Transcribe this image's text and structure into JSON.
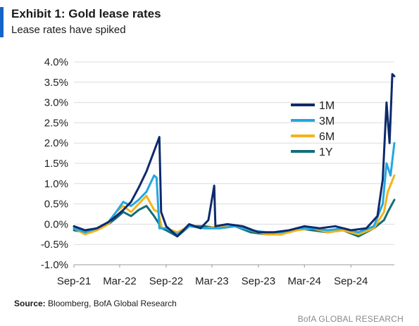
{
  "header": {
    "title": "Exhibit 1: Gold lease rates",
    "subtitle": "Lease rates have spiked"
  },
  "footer": {
    "source_label": "Source:",
    "source_text": "Bloomberg, BofA Global Research",
    "brand": "BofA GLOBAL RESEARCH"
  },
  "colors": {
    "accent": "#1464c8",
    "grid": "#dcdcdc",
    "axis": "#9a9a9a"
  },
  "chart_data": {
    "type": "line",
    "title": "Exhibit 1: Gold lease rates",
    "subtitle": "Lease rates have spiked",
    "xlabel": "",
    "ylabel": "",
    "ylim": [
      -1.0,
      4.0
    ],
    "yticks": [
      "4.0%",
      "3.5%",
      "3.0%",
      "2.5%",
      "2.0%",
      "1.5%",
      "1.0%",
      "0.5%",
      "0.0%",
      "-0.5%",
      "-1.0%"
    ],
    "ytick_values": [
      4.0,
      3.5,
      3.0,
      2.5,
      2.0,
      1.5,
      1.0,
      0.5,
      0.0,
      -0.5,
      -1.0
    ],
    "xlim": [
      "2021-09-01",
      "2025-02-20"
    ],
    "xticks": [
      "Sep-21",
      "Mar-22",
      "Sep-22",
      "Mar-23",
      "Sep-23",
      "Mar-24",
      "Sep-24"
    ],
    "xtick_dates": [
      "2021-09-01",
      "2022-03-01",
      "2022-09-01",
      "2023-03-01",
      "2023-09-01",
      "2024-03-01",
      "2024-09-01"
    ],
    "grid": "horizontal",
    "legend_position": "right-inside",
    "series": [
      {
        "name": "1M",
        "color": "#0e2a6b",
        "points": [
          [
            "2021-09-01",
            -0.05
          ],
          [
            "2021-10-15",
            -0.15
          ],
          [
            "2021-12-01",
            -0.1
          ],
          [
            "2022-01-15",
            0.05
          ],
          [
            "2022-02-15",
            0.2
          ],
          [
            "2022-03-15",
            0.35
          ],
          [
            "2022-04-15",
            0.55
          ],
          [
            "2022-05-15",
            0.9
          ],
          [
            "2022-06-15",
            1.3
          ],
          [
            "2022-07-15",
            1.8
          ],
          [
            "2022-08-05",
            2.15
          ],
          [
            "2022-08-12",
            0.3
          ],
          [
            "2022-09-01",
            -0.05
          ],
          [
            "2022-10-15",
            -0.3
          ],
          [
            "2022-12-01",
            0.0
          ],
          [
            "2023-01-15",
            -0.1
          ],
          [
            "2023-02-15",
            0.1
          ],
          [
            "2023-03-10",
            0.95
          ],
          [
            "2023-03-15",
            -0.05
          ],
          [
            "2023-05-01",
            0.0
          ],
          [
            "2023-07-01",
            -0.05
          ],
          [
            "2023-09-01",
            -0.2
          ],
          [
            "2023-11-01",
            -0.2
          ],
          [
            "2024-01-01",
            -0.15
          ],
          [
            "2024-03-01",
            -0.05
          ],
          [
            "2024-05-01",
            -0.1
          ],
          [
            "2024-07-01",
            -0.05
          ],
          [
            "2024-09-01",
            -0.15
          ],
          [
            "2024-11-01",
            -0.1
          ],
          [
            "2024-12-15",
            0.2
          ],
          [
            "2025-01-05",
            1.1
          ],
          [
            "2025-01-20",
            3.0
          ],
          [
            "2025-02-01",
            2.0
          ],
          [
            "2025-02-12",
            3.7
          ],
          [
            "2025-02-20",
            3.65
          ]
        ]
      },
      {
        "name": "3M",
        "color": "#23a7e0",
        "points": [
          [
            "2021-09-01",
            -0.1
          ],
          [
            "2021-10-15",
            -0.2
          ],
          [
            "2021-12-01",
            -0.1
          ],
          [
            "2022-01-15",
            0.05
          ],
          [
            "2022-02-15",
            0.3
          ],
          [
            "2022-03-15",
            0.55
          ],
          [
            "2022-04-15",
            0.45
          ],
          [
            "2022-05-15",
            0.6
          ],
          [
            "2022-06-15",
            0.8
          ],
          [
            "2022-07-15",
            1.2
          ],
          [
            "2022-07-25",
            1.15
          ],
          [
            "2022-08-05",
            -0.1
          ],
          [
            "2022-09-01",
            -0.1
          ],
          [
            "2022-10-15",
            -0.25
          ],
          [
            "2022-12-01",
            -0.05
          ],
          [
            "2023-02-01",
            -0.1
          ],
          [
            "2023-04-01",
            -0.1
          ],
          [
            "2023-06-01",
            -0.05
          ],
          [
            "2023-08-01",
            -0.15
          ],
          [
            "2023-10-01",
            -0.2
          ],
          [
            "2023-12-01",
            -0.2
          ],
          [
            "2024-02-01",
            -0.1
          ],
          [
            "2024-04-01",
            -0.1
          ],
          [
            "2024-06-01",
            -0.15
          ],
          [
            "2024-08-01",
            -0.1
          ],
          [
            "2024-10-01",
            -0.2
          ],
          [
            "2024-12-01",
            -0.05
          ],
          [
            "2025-01-05",
            0.5
          ],
          [
            "2025-01-20",
            1.5
          ],
          [
            "2025-02-05",
            1.2
          ],
          [
            "2025-02-20",
            2.0
          ]
        ]
      },
      {
        "name": "6M",
        "color": "#f2b41a",
        "points": [
          [
            "2021-09-01",
            -0.1
          ],
          [
            "2021-10-15",
            -0.25
          ],
          [
            "2021-12-01",
            -0.15
          ],
          [
            "2022-01-15",
            0.0
          ],
          [
            "2022-02-15",
            0.3
          ],
          [
            "2022-03-15",
            0.45
          ],
          [
            "2022-04-15",
            0.3
          ],
          [
            "2022-05-15",
            0.5
          ],
          [
            "2022-06-15",
            0.7
          ],
          [
            "2022-07-15",
            0.35
          ],
          [
            "2022-08-01",
            0.3
          ],
          [
            "2022-08-15",
            -0.1
          ],
          [
            "2022-09-01",
            -0.1
          ],
          [
            "2022-10-15",
            -0.2
          ],
          [
            "2022-12-01",
            -0.05
          ],
          [
            "2023-02-01",
            -0.1
          ],
          [
            "2023-04-01",
            -0.05
          ],
          [
            "2023-06-01",
            -0.05
          ],
          [
            "2023-08-01",
            -0.15
          ],
          [
            "2023-10-01",
            -0.25
          ],
          [
            "2023-12-01",
            -0.25
          ],
          [
            "2024-02-01",
            -0.15
          ],
          [
            "2024-04-01",
            -0.1
          ],
          [
            "2024-06-01",
            -0.2
          ],
          [
            "2024-08-01",
            -0.15
          ],
          [
            "2024-10-01",
            -0.25
          ],
          [
            "2024-12-01",
            -0.1
          ],
          [
            "2025-01-10",
            0.3
          ],
          [
            "2025-01-25",
            0.8
          ],
          [
            "2025-02-20",
            1.2
          ]
        ]
      },
      {
        "name": "1Y",
        "color": "#136e7a",
        "points": [
          [
            "2021-09-01",
            -0.15
          ],
          [
            "2021-10-15",
            -0.2
          ],
          [
            "2021-12-01",
            -0.1
          ],
          [
            "2022-01-15",
            0.0
          ],
          [
            "2022-02-15",
            0.15
          ],
          [
            "2022-03-15",
            0.3
          ],
          [
            "2022-04-15",
            0.2
          ],
          [
            "2022-05-15",
            0.35
          ],
          [
            "2022-06-15",
            0.45
          ],
          [
            "2022-07-15",
            0.2
          ],
          [
            "2022-08-15",
            -0.1
          ],
          [
            "2022-09-01",
            -0.15
          ],
          [
            "2022-10-15",
            -0.3
          ],
          [
            "2022-12-01",
            -0.05
          ],
          [
            "2023-02-01",
            -0.05
          ],
          [
            "2023-04-01",
            -0.1
          ],
          [
            "2023-06-01",
            -0.05
          ],
          [
            "2023-08-01",
            -0.2
          ],
          [
            "2023-10-01",
            -0.25
          ],
          [
            "2023-12-01",
            -0.25
          ],
          [
            "2024-02-01",
            -0.1
          ],
          [
            "2024-04-01",
            -0.15
          ],
          [
            "2024-06-01",
            -0.2
          ],
          [
            "2024-08-01",
            -0.15
          ],
          [
            "2024-10-01",
            -0.3
          ],
          [
            "2024-12-01",
            -0.1
          ],
          [
            "2025-01-10",
            0.1
          ],
          [
            "2025-01-25",
            0.3
          ],
          [
            "2025-02-20",
            0.6
          ]
        ]
      }
    ]
  }
}
